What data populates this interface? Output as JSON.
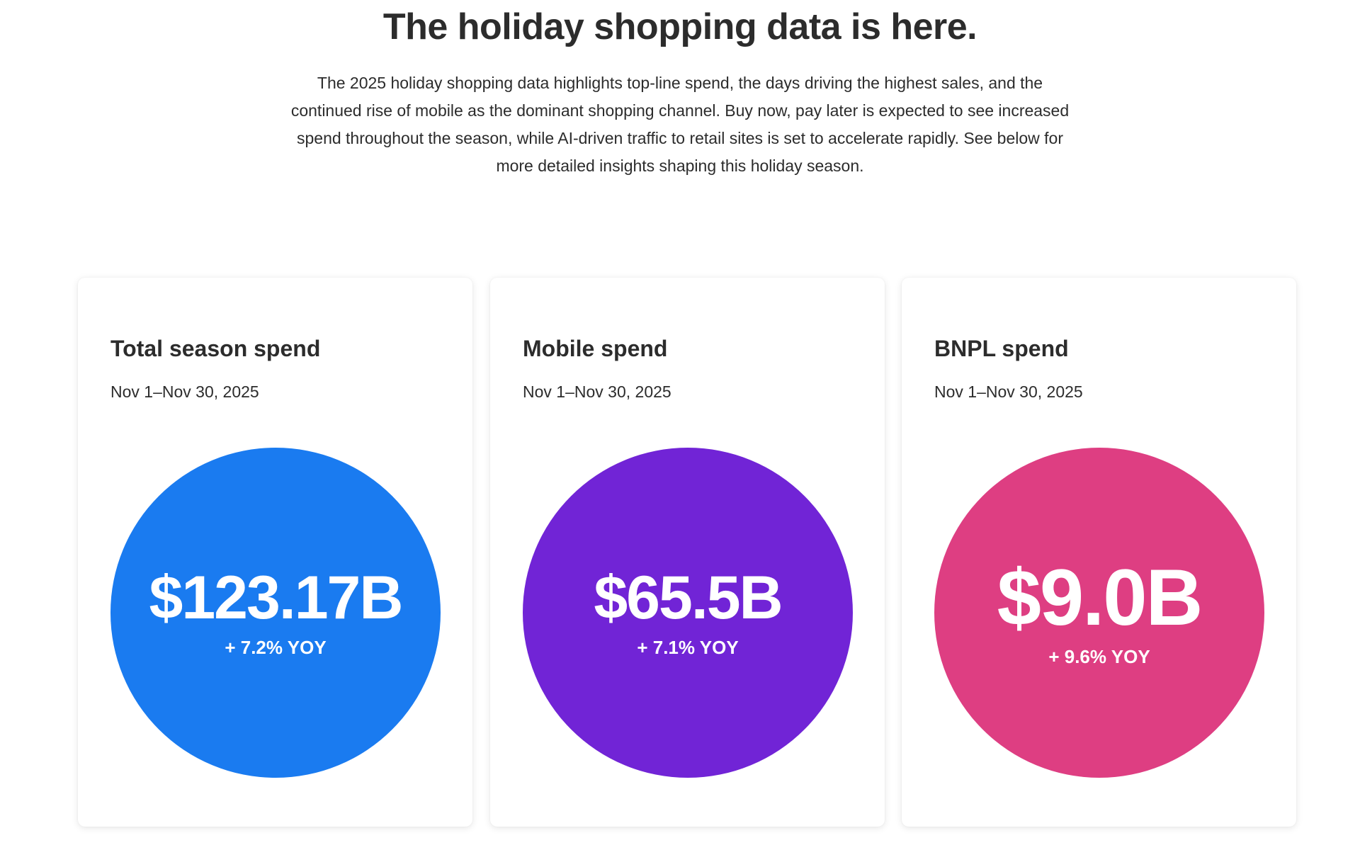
{
  "header": {
    "title": "The holiday shopping data is here.",
    "intro": "The 2025 holiday shopping data highlights top-line spend, the days driving the highest sales, and the continued rise of mobile as the dominant shopping channel. Buy now, pay later is expected to see increased spend throughout the season, while AI-driven traffic to retail sites is set to accelerate rapidly. See below for more detailed insights shaping this holiday season."
  },
  "cards": [
    {
      "title": "Total season spend",
      "date": "Nov 1–Nov 30, 2025",
      "value": "$123.17B",
      "yoy": "+ 7.2% YOY",
      "color": "#1a7bf0"
    },
    {
      "title": "Mobile spend",
      "date": "Nov 1–Nov 30, 2025",
      "value": "$65.5B",
      "yoy": "+ 7.1% YOY",
      "color": "#7124d6"
    },
    {
      "title": "BNPL spend",
      "date": "Nov 1–Nov 30, 2025",
      "value": "$9.0B",
      "yoy": "+ 9.6% YOY",
      "color": "#de3e82"
    }
  ]
}
